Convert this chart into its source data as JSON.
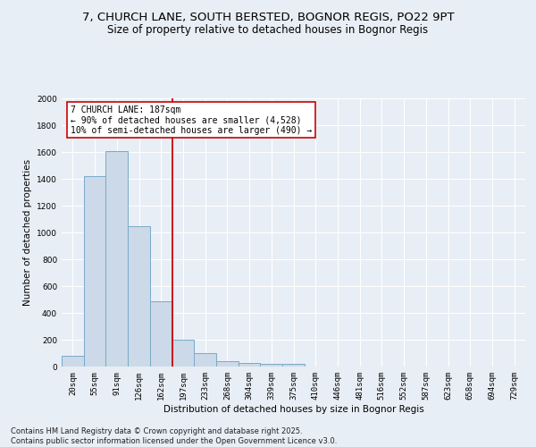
{
  "title_line1": "7, CHURCH LANE, SOUTH BERSTED, BOGNOR REGIS, PO22 9PT",
  "title_line2": "Size of property relative to detached houses in Bognor Regis",
  "xlabel": "Distribution of detached houses by size in Bognor Regis",
  "ylabel": "Number of detached properties",
  "categories": [
    "20sqm",
    "55sqm",
    "91sqm",
    "126sqm",
    "162sqm",
    "197sqm",
    "233sqm",
    "268sqm",
    "304sqm",
    "339sqm",
    "375sqm",
    "410sqm",
    "446sqm",
    "481sqm",
    "516sqm",
    "552sqm",
    "587sqm",
    "623sqm",
    "658sqm",
    "694sqm",
    "729sqm"
  ],
  "values": [
    80,
    1420,
    1610,
    1050,
    490,
    200,
    100,
    38,
    28,
    20,
    18,
    0,
    0,
    0,
    0,
    0,
    0,
    0,
    0,
    0,
    0
  ],
  "bar_color": "#ccd9e8",
  "bar_edge_color": "#7aaac8",
  "red_line_x": 4.5,
  "annotation_text": "7 CHURCH LANE: 187sqm\n← 90% of detached houses are smaller (4,528)\n10% of semi-detached houses are larger (490) →",
  "annotation_box_color": "#ffffff",
  "annotation_box_edge": "#cc0000",
  "red_line_color": "#cc0000",
  "footer_line1": "Contains HM Land Registry data © Crown copyright and database right 2025.",
  "footer_line2": "Contains public sector information licensed under the Open Government Licence v3.0.",
  "ylim": [
    0,
    2000
  ],
  "yticks": [
    0,
    200,
    400,
    600,
    800,
    1000,
    1200,
    1400,
    1600,
    1800,
    2000
  ],
  "background_color": "#e8eef5",
  "plot_bg_color": "#e8eef5",
  "grid_color": "#ffffff",
  "title_fontsize": 9.5,
  "subtitle_fontsize": 8.5,
  "axis_label_fontsize": 7.5,
  "tick_fontsize": 6.5,
  "footer_fontsize": 6.0,
  "annotation_fontsize": 7.0
}
